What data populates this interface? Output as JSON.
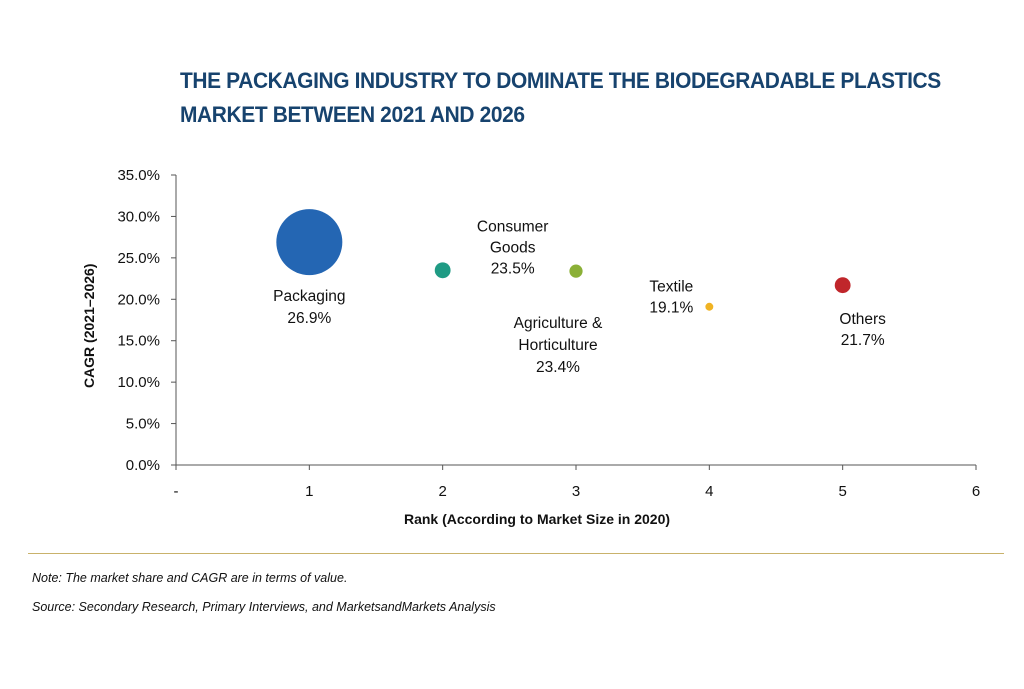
{
  "chart_data": {
    "type": "scatter",
    "title_lines": [
      "THE PACKAGING INDUSTRY TO DOMINATE THE BIODEGRADABLE PLASTICS",
      "MARKET BETWEEN 2021 AND 2026"
    ],
    "xlabel": "Rank (According to Market Size in 2020)",
    "ylabel": "CAGR (2021–2026)",
    "xlim": [
      0,
      6
    ],
    "ylim": [
      0,
      35
    ],
    "x_ticks": [
      {
        "value": 0,
        "label": "-"
      },
      {
        "value": 1,
        "label": "1"
      },
      {
        "value": 2,
        "label": "2"
      },
      {
        "value": 3,
        "label": "3"
      },
      {
        "value": 4,
        "label": "4"
      },
      {
        "value": 5,
        "label": "5"
      },
      {
        "value": 6,
        "label": "6"
      }
    ],
    "y_ticks": [
      {
        "value": 0,
        "label": "0.0%"
      },
      {
        "value": 5,
        "label": "5.0%"
      },
      {
        "value": 10,
        "label": "10.0%"
      },
      {
        "value": 15,
        "label": "15.0%"
      },
      {
        "value": 20,
        "label": "20.0%"
      },
      {
        "value": 25,
        "label": "25.0%"
      },
      {
        "value": 30,
        "label": "30.0%"
      },
      {
        "value": 35,
        "label": "35.0%"
      }
    ],
    "legend": "none",
    "grid": false,
    "points": [
      {
        "key": "packaging",
        "x": 1,
        "y": 26.9,
        "bubble_scale": 1.0,
        "color": "#2466b3",
        "label_lines": [
          "Packaging",
          "26.9%"
        ]
      },
      {
        "key": "consumer-goods",
        "x": 2,
        "y": 23.5,
        "bubble_scale": 0.24,
        "color": "#1f9b84",
        "label_lines": [
          "Consumer",
          "Goods",
          "23.5%"
        ]
      },
      {
        "key": "agriculture-horticulture",
        "x": 3,
        "y": 23.4,
        "bubble_scale": 0.2,
        "color": "#8bb037",
        "label_lines": [
          "Agriculture &",
          "Horticulture",
          "23.4%"
        ]
      },
      {
        "key": "textile",
        "x": 4,
        "y": 19.1,
        "bubble_scale": 0.12,
        "color": "#f0b323",
        "label_lines": [
          "Textile",
          "19.1%"
        ]
      },
      {
        "key": "others",
        "x": 5,
        "y": 21.7,
        "bubble_scale": 0.24,
        "color": "#c0262b",
        "label_lines": [
          "Others",
          "21.7%"
        ]
      }
    ]
  },
  "footer": {
    "note": "Note: The market share and CAGR are in terms of value.",
    "source": "Source: Secondary Research, Primary Interviews, and MarketsandMarkets Analysis"
  }
}
